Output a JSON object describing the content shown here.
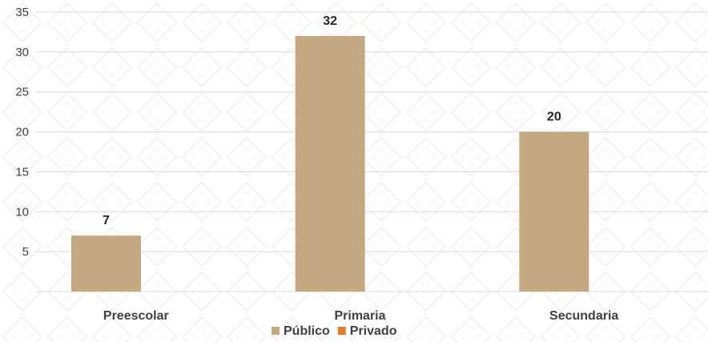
{
  "chart_data": {
    "type": "bar",
    "categories": [
      "Preescolar",
      "Primaria",
      "Secundaria"
    ],
    "series": [
      {
        "name": "Público",
        "values": [
          7,
          32,
          20
        ],
        "color": "#c4a882"
      },
      {
        "name": "Privado",
        "values": [
          0,
          0,
          0
        ],
        "color": "#e07a2e"
      }
    ],
    "ylim": [
      0,
      35
    ],
    "yticks": [
      5,
      10,
      15,
      20,
      25,
      30,
      35
    ],
    "grid": true,
    "legend_position": "bottom",
    "data_labels": [
      "7",
      "32",
      "20"
    ]
  }
}
